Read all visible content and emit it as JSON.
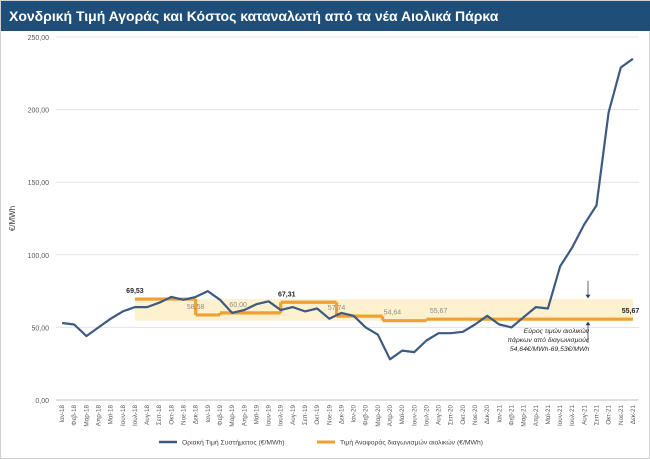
{
  "title": "Χονδρική Τιμή Αγοράς  και Κόστος καταναλωτή από τα νέα Αιολικά Πάρκα",
  "chart_data": {
    "type": "line",
    "title": "Χονδρική Τιμή Αγοράς  και Κόστος καταναλωτή από τα νέα Αιολικά Πάρκα",
    "ylabel": "€/MWh",
    "xlabel": "",
    "ylim": [
      0,
      250
    ],
    "yticks": [
      "0,00",
      "50,00",
      "100,00",
      "150,00",
      "200,00",
      "250,00"
    ],
    "categories": [
      "Ιαν-18",
      "Φεβ-18",
      "Μαρ-18",
      "Απρ-18",
      "Μαϊ-18",
      "Ιουν-18",
      "Ιουλ-18",
      "Αυγ-18",
      "Σεπ-18",
      "Οκτ-18",
      "Νοε-18",
      "Δεκ-18",
      "Ιαν-19",
      "Φεβ-19",
      "Μαρ-19",
      "Απρ-19",
      "Μαϊ-19",
      "Ιουν-19",
      "Ιουλ-19",
      "Αυγ-19",
      "Σεπ-19",
      "Οκτ-19",
      "Νοε-19",
      "Δεκ-19",
      "Ιαν-20",
      "Φεβ-20",
      "Μαρ-20",
      "Απρ-20",
      "Μαϊ-20",
      "Ιουν-20",
      "Ιουλ-20",
      "Αυγ-20",
      "Σεπ-20",
      "Οκτ-20",
      "Νοε-20",
      "Δεκ-20",
      "Ιαν-21",
      "Φεβ-21",
      "Μαρ-21",
      "Απρ-21",
      "Μαϊ-21",
      "Ιουν-21",
      "Ιουλ-21",
      "Αυγ-21",
      "Σεπ-21",
      "Οκτ-21",
      "Νοε-21",
      "Δεκ-21"
    ],
    "series": [
      {
        "name": "Οριακή Τιμή Συστήματος (€/MWh)",
        "color": "#3d5a80",
        "values": [
          53,
          52,
          44,
          50,
          56,
          61,
          64,
          64,
          67,
          71,
          69,
          71,
          75,
          69,
          60,
          62,
          66,
          68,
          62,
          64,
          61,
          63,
          56,
          60,
          58,
          50,
          45,
          28,
          34,
          33,
          41,
          46,
          46,
          47,
          52,
          58,
          52,
          50,
          57,
          64,
          63,
          92,
          105,
          121,
          134,
          198,
          229,
          235
        ]
      },
      {
        "name": "Τιμή Αναφοράς διαγωνισμών αιολικών (€/MWh)",
        "color": "#f0a030",
        "type": "step",
        "segments": [
          {
            "from": 6,
            "to": 11,
            "value": 69.53
          },
          {
            "from": 11,
            "to": 13,
            "value": 58.58
          },
          {
            "from": 13,
            "to": 18,
            "value": 60
          },
          {
            "from": 18,
            "to": 22.6,
            "value": 67.31
          },
          {
            "from": 22.6,
            "to": 26.4,
            "value": 57.74
          },
          {
            "from": 26.4,
            "to": 30,
            "value": 54.64
          },
          {
            "from": 30,
            "to": 47,
            "value": 55.67
          }
        ]
      }
    ],
    "data_labels": [
      {
        "text": "69,53",
        "index": 6,
        "value": 69.53
      },
      {
        "text": "58,58",
        "index": 11,
        "value": 58.58
      },
      {
        "text": "60,00",
        "index": 14.5,
        "value": 60
      },
      {
        "text": "67,31",
        "index": 18.5,
        "value": 67.31
      },
      {
        "text": "57,74",
        "index": 22.6,
        "value": 57.74
      },
      {
        "text": "54,64",
        "index": 27.2,
        "value": 54.64
      },
      {
        "text": "55,67",
        "index": 31,
        "value": 55.67
      },
      {
        "text": "55,67",
        "index": 46.8,
        "value": 55.67
      }
    ],
    "band": {
      "low": 54.64,
      "high": 69.53,
      "from": 6,
      "to": 47,
      "color": "#fdf1cf"
    },
    "annotation": {
      "lines": [
        "Εύρος τιμών αιολικών",
        "πάρκων από διαγωνισμούς",
        "54,64€/MWh-69,53€/MWh"
      ]
    },
    "legend_position": "bottom"
  }
}
